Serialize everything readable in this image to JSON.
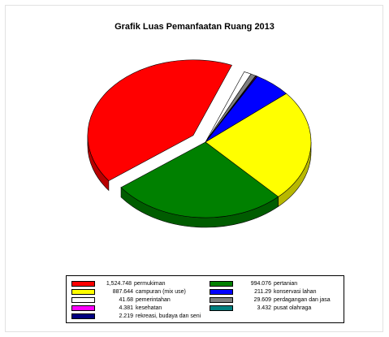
{
  "chart_data": {
    "type": "pie",
    "title": "Grafik Luas Pemanfaatan Ruang 2013",
    "legend_position": "bottom",
    "slices": [
      {
        "value_label": "1,524.748",
        "name": "permukiman",
        "value": 1524.748,
        "color": "#ff0000"
      },
      {
        "value_label": "994.076",
        "name": "pertanian",
        "value": 994.076,
        "color": "#008000"
      },
      {
        "value_label": "887.644",
        "name": "campuran (mix use)",
        "value": 887.644,
        "color": "#ffff00"
      },
      {
        "value_label": "211.29",
        "name": "konservasi lahan",
        "value": 211.29,
        "color": "#0000ff"
      },
      {
        "value_label": "41.68",
        "name": "pemerintahan",
        "value": 41.68,
        "color": "#ffffff"
      },
      {
        "value_label": "29.609",
        "name": "perdagangan dan jasa",
        "value": 29.609,
        "color": "#808080"
      },
      {
        "value_label": "4.381",
        "name": "kesehatan",
        "value": 4.381,
        "color": "#ff00ff"
      },
      {
        "value_label": "3.432",
        "name": "pusat olahraga",
        "value": 3.432,
        "color": "#008080"
      },
      {
        "value_label": "2.219",
        "name": "rekreasi, budaya dan seni",
        "value": 2.219,
        "color": "#000080"
      }
    ],
    "pie_order": [
      "pemerintahan",
      "perdagangan dan jasa",
      "pusat olahraga",
      "kesehatan",
      "rekreasi, budaya dan seni",
      "konservasi lahan",
      "campuran (mix use)",
      "pertanian",
      "permukiman"
    ],
    "exploded": [
      "permukiman"
    ]
  }
}
